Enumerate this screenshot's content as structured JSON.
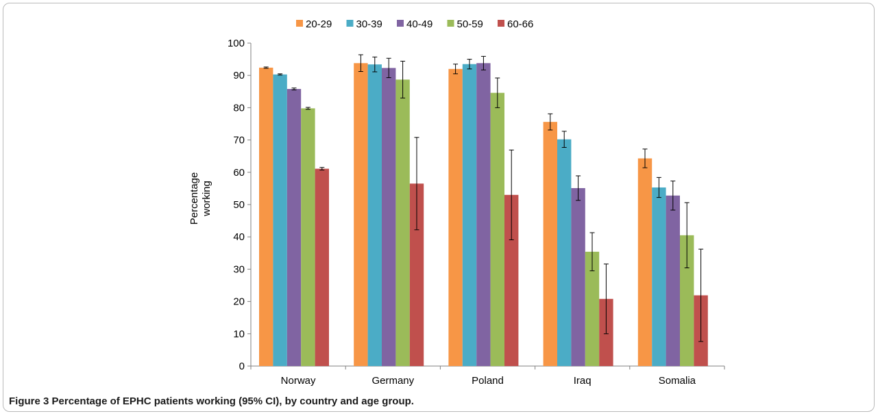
{
  "caption": {
    "label": "Figure 3",
    "text": "Percentage of EPHC patients working (95% CI), by country and age group."
  },
  "chart_data": {
    "type": "bar",
    "ylabel_lines": [
      "Percentage",
      "working"
    ],
    "xlabel": "",
    "ylim": [
      0,
      100
    ],
    "yticks": [
      0,
      10,
      20,
      30,
      40,
      50,
      60,
      70,
      80,
      90,
      100
    ],
    "legend_position": "top",
    "categories": [
      "Norway",
      "Germany",
      "Poland",
      "Iraq",
      "Somalia"
    ],
    "series": [
      {
        "name": "20-29",
        "color": "#f79646",
        "values": [
          92.4,
          93.8,
          92.0,
          75.6,
          64.3
        ],
        "ci_low": [
          92.2,
          91.2,
          90.5,
          73.1,
          61.4
        ],
        "ci_high": [
          92.6,
          96.4,
          93.5,
          78.1,
          67.2
        ]
      },
      {
        "name": "30-39",
        "color": "#4bacc6",
        "values": [
          90.3,
          93.4,
          93.5,
          70.2,
          55.3
        ],
        "ci_low": [
          90.1,
          91.1,
          92.0,
          67.7,
          52.2
        ],
        "ci_high": [
          90.5,
          95.7,
          95.0,
          72.7,
          58.4
        ]
      },
      {
        "name": "40-49",
        "color": "#8064a2",
        "values": [
          85.8,
          92.3,
          93.8,
          55.1,
          52.8
        ],
        "ci_low": [
          85.5,
          89.3,
          91.7,
          51.3,
          48.3
        ],
        "ci_high": [
          86.1,
          95.3,
          95.9,
          58.9,
          57.3
        ]
      },
      {
        "name": "50-59",
        "color": "#9bbb59",
        "values": [
          79.8,
          88.7,
          84.6,
          35.4,
          40.5
        ],
        "ci_low": [
          79.5,
          83.0,
          80.0,
          29.5,
          30.4
        ],
        "ci_high": [
          80.1,
          94.4,
          89.2,
          41.3,
          50.6
        ]
      },
      {
        "name": "60-66",
        "color": "#c0504d",
        "values": [
          61.1,
          56.5,
          53.0,
          20.8,
          21.9
        ],
        "ci_low": [
          60.7,
          42.2,
          39.1,
          10.0,
          7.6
        ],
        "ci_high": [
          61.5,
          70.8,
          66.9,
          31.6,
          36.2
        ]
      }
    ]
  }
}
